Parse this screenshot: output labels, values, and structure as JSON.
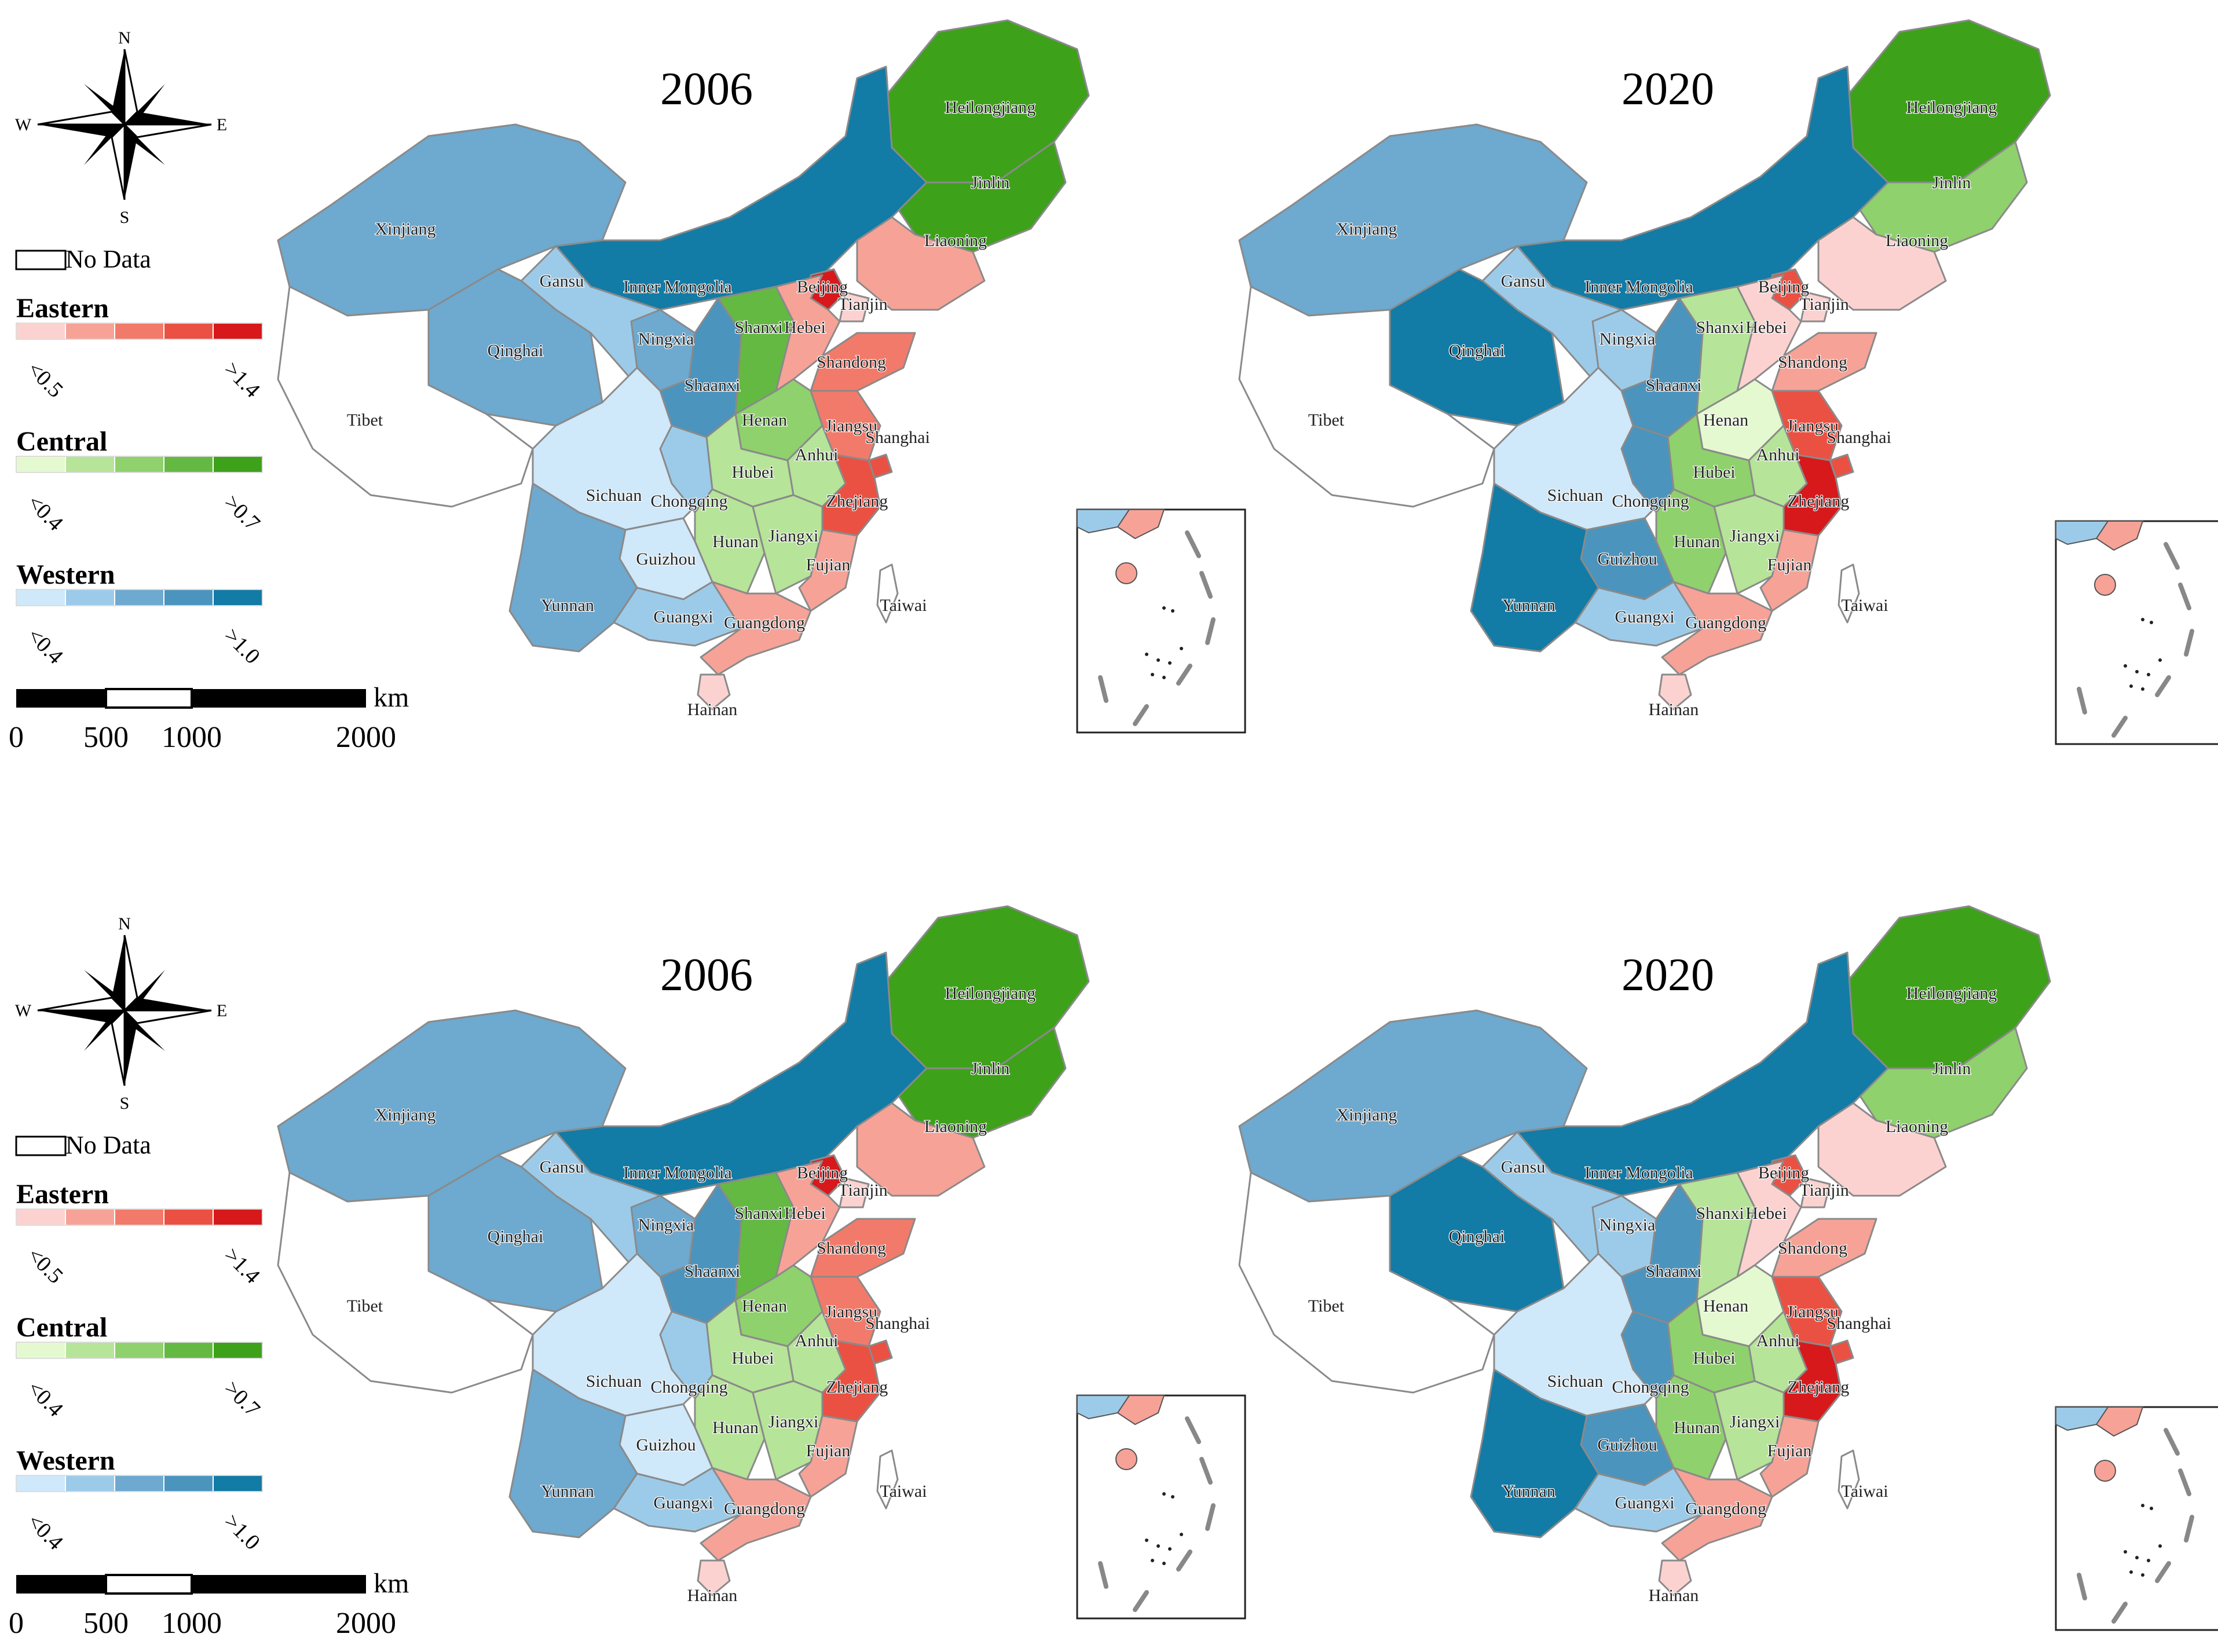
{
  "compass": {
    "n": "N",
    "s": "S",
    "e": "E",
    "w": "W"
  },
  "legend": {
    "no_data": "No Data",
    "groups": [
      {
        "key": "eastern",
        "title": "Eastern",
        "low": "<0.5",
        "high": ">1.4",
        "colors": [
          "#fcd2d0",
          "#f7a297",
          "#f27a6a",
          "#ea5143",
          "#d7191c"
        ]
      },
      {
        "key": "central",
        "title": "Central",
        "low": "<0.4",
        "high": ">0.7",
        "colors": [
          "#e4f9cf",
          "#b6e498",
          "#8fd16c",
          "#64b943",
          "#3ea11a"
        ]
      },
      {
        "key": "western",
        "title": "Western",
        "low": "<0.4",
        "high": ">1.0",
        "colors": [
          "#cfe8fa",
          "#9ccbe9",
          "#6ea9cf",
          "#4b94bd",
          "#127ba6"
        ]
      }
    ]
  },
  "scale_bar": {
    "unit": "km",
    "ticks": [
      "0",
      "500",
      "1000",
      "2000"
    ]
  },
  "panels": [
    {
      "key": "p1",
      "title": "2006",
      "variant": "2006"
    },
    {
      "key": "p2",
      "title": "2020",
      "variant": "2020"
    },
    {
      "key": "p3",
      "title": "2006",
      "variant": "2006"
    },
    {
      "key": "p4",
      "title": "2020",
      "variant": "2020"
    }
  ],
  "provinces": [
    {
      "name": "Heilongjiang",
      "group": "central",
      "class_2006": 5,
      "class_2020": 5
    },
    {
      "name": "Jinlin",
      "group": "central",
      "class_2006": 5,
      "class_2020": 3
    },
    {
      "name": "Liaoning",
      "group": "eastern",
      "class_2006": 2,
      "class_2020": 1
    },
    {
      "name": "Inner Mongolia",
      "group": "western",
      "class_2006": 5,
      "class_2020": 5
    },
    {
      "name": "Xinjiang",
      "group": "western",
      "class_2006": 3,
      "class_2020": 3
    },
    {
      "name": "Gansu",
      "group": "western",
      "class_2006": 2,
      "class_2020": 2
    },
    {
      "name": "Qinghai",
      "group": "western",
      "class_2006": 3,
      "class_2020": 5
    },
    {
      "name": "Tibet",
      "group": "none",
      "class_2006": 0,
      "class_2020": 0
    },
    {
      "name": "Ningxia",
      "group": "western",
      "class_2006": 3,
      "class_2020": 2
    },
    {
      "name": "Shaanxi",
      "group": "western",
      "class_2006": 4,
      "class_2020": 4
    },
    {
      "name": "Shanxi",
      "group": "central",
      "class_2006": 4,
      "class_2020": 2
    },
    {
      "name": "Beijing",
      "group": "eastern",
      "class_2006": 5,
      "class_2020": 4
    },
    {
      "name": "Tianjin",
      "group": "eastern",
      "class_2006": 1,
      "class_2020": 1
    },
    {
      "name": "Hebei",
      "group": "eastern",
      "class_2006": 2,
      "class_2020": 1
    },
    {
      "name": "Shandong",
      "group": "eastern",
      "class_2006": 3,
      "class_2020": 2
    },
    {
      "name": "Henan",
      "group": "central",
      "class_2006": 3,
      "class_2020": 1
    },
    {
      "name": "Jiangsu",
      "group": "eastern",
      "class_2006": 3,
      "class_2020": 4
    },
    {
      "name": "Shanghai",
      "group": "eastern",
      "class_2006": 4,
      "class_2020": 4
    },
    {
      "name": "Anhui",
      "group": "central",
      "class_2006": 2,
      "class_2020": 2
    },
    {
      "name": "Hubei",
      "group": "central",
      "class_2006": 2,
      "class_2020": 3
    },
    {
      "name": "Sichuan",
      "group": "western",
      "class_2006": 1,
      "class_2020": 1
    },
    {
      "name": "Chongqing",
      "group": "western",
      "class_2006": 2,
      "class_2020": 4
    },
    {
      "name": "Zhejiang",
      "group": "eastern",
      "class_2006": 4,
      "class_2020": 5
    },
    {
      "name": "Hunan",
      "group": "central",
      "class_2006": 2,
      "class_2020": 3
    },
    {
      "name": "Jiangxi",
      "group": "central",
      "class_2006": 2,
      "class_2020": 2
    },
    {
      "name": "Guizhou",
      "group": "western",
      "class_2006": 1,
      "class_2020": 4
    },
    {
      "name": "Fujian",
      "group": "eastern",
      "class_2006": 2,
      "class_2020": 2
    },
    {
      "name": "Yunnan",
      "group": "western",
      "class_2006": 3,
      "class_2020": 5
    },
    {
      "name": "Guangxi",
      "group": "western",
      "class_2006": 2,
      "class_2020": 2
    },
    {
      "name": "Guangdong",
      "group": "eastern",
      "class_2006": 2,
      "class_2020": 2
    },
    {
      "name": "Taiwai",
      "group": "none",
      "class_2006": 0,
      "class_2020": 0
    },
    {
      "name": "Hainan",
      "group": "eastern",
      "class_2006": 1,
      "class_2020": 1
    }
  ]
}
